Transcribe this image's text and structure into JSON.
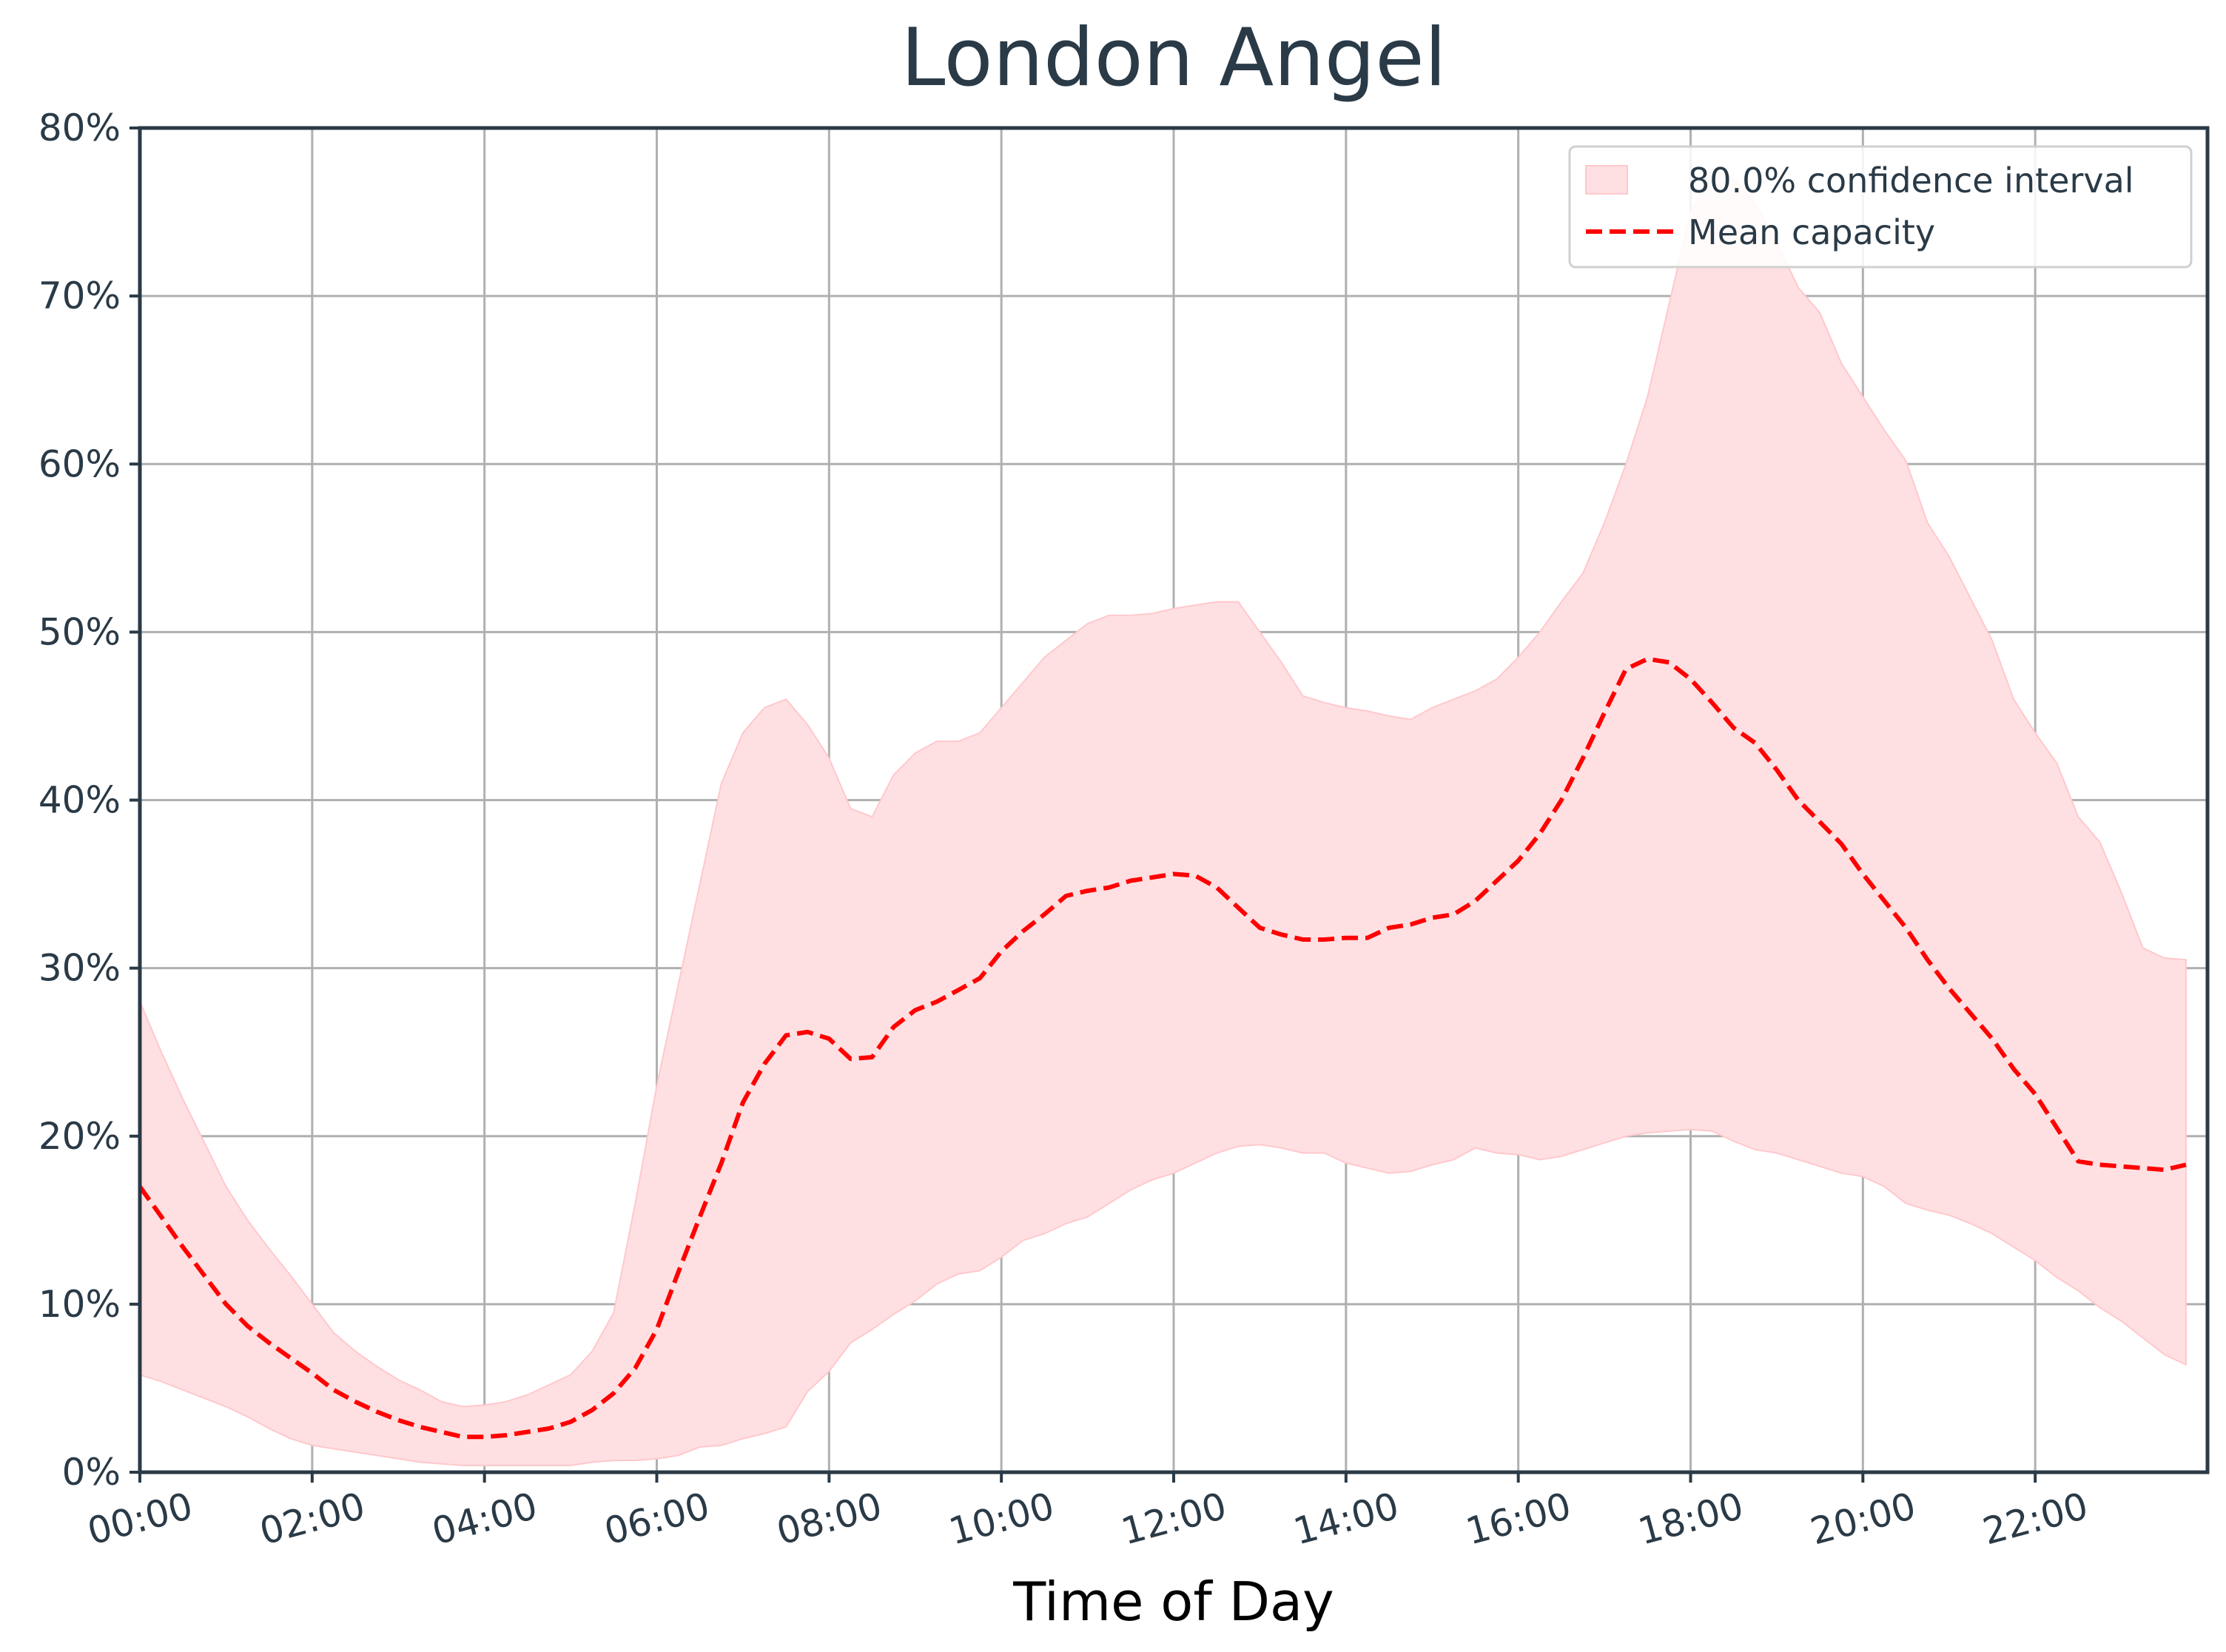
{
  "chart_data": {
    "type": "line",
    "title": "London Angel",
    "xlabel": "Time of Day",
    "ylabel": "",
    "ylim": [
      0,
      0.8
    ],
    "xlim": [
      "00:00",
      "23:45"
    ],
    "x_tick_labels": [
      "00:00",
      "02:00",
      "04:00",
      "06:00",
      "08:00",
      "10:00",
      "12:00",
      "14:00",
      "16:00",
      "18:00",
      "20:00",
      "22:00"
    ],
    "y_tick_labels": [
      "0%",
      "10%",
      "20%",
      "30%",
      "40%",
      "50%",
      "60%",
      "70%",
      "80%"
    ],
    "grid": true,
    "legend_position": "top-right",
    "colors": {
      "mean": "#ff0000",
      "band": "#ffe0e2",
      "band_edge": "#ffc8cc",
      "grid": "#b0b0b0",
      "axes": "#2a3a47",
      "text": "#2a3a47"
    },
    "legend": [
      {
        "label": "80.0% confidence interval",
        "kind": "band"
      },
      {
        "label": "Mean capacity",
        "kind": "dashed-line"
      }
    ],
    "x": [
      "00:00",
      "00:15",
      "00:30",
      "00:45",
      "01:00",
      "01:15",
      "01:30",
      "01:45",
      "02:00",
      "02:15",
      "02:30",
      "02:45",
      "03:00",
      "03:15",
      "03:30",
      "03:45",
      "04:00",
      "04:15",
      "04:30",
      "04:45",
      "05:00",
      "05:15",
      "05:30",
      "05:45",
      "06:00",
      "06:15",
      "06:30",
      "06:45",
      "07:00",
      "07:15",
      "07:30",
      "07:45",
      "08:00",
      "08:15",
      "08:30",
      "08:45",
      "09:00",
      "09:15",
      "09:30",
      "09:45",
      "10:00",
      "10:15",
      "10:30",
      "10:45",
      "11:00",
      "11:15",
      "11:30",
      "11:45",
      "12:00",
      "12:15",
      "12:30",
      "12:45",
      "13:00",
      "13:15",
      "13:30",
      "13:45",
      "14:00",
      "14:15",
      "14:30",
      "14:45",
      "15:00",
      "15:15",
      "15:30",
      "15:45",
      "16:00",
      "16:15",
      "16:30",
      "16:45",
      "17:00",
      "17:15",
      "17:30",
      "17:45",
      "18:00",
      "18:15",
      "18:30",
      "18:45",
      "19:00",
      "19:15",
      "19:30",
      "19:45",
      "20:00",
      "20:15",
      "20:30",
      "20:45",
      "21:00",
      "21:15",
      "21:30",
      "21:45",
      "22:00",
      "22:15",
      "22:30",
      "22:45",
      "23:00",
      "23:15",
      "23:30",
      "23:45"
    ],
    "series": [
      {
        "name": "Mean capacity",
        "values": [
          0.17,
          0.152,
          0.134,
          0.117,
          0.1,
          0.087,
          0.077,
          0.068,
          0.059,
          0.049,
          0.042,
          0.036,
          0.031,
          0.027,
          0.024,
          0.021,
          0.021,
          0.022,
          0.024,
          0.026,
          0.03,
          0.037,
          0.047,
          0.062,
          0.085,
          0.119,
          0.152,
          0.184,
          0.22,
          0.243,
          0.26,
          0.262,
          0.258,
          0.246,
          0.247,
          0.265,
          0.275,
          0.28,
          0.287,
          0.294,
          0.31,
          0.322,
          0.332,
          0.343,
          0.346,
          0.348,
          0.352,
          0.354,
          0.356,
          0.355,
          0.348,
          0.336,
          0.324,
          0.32,
          0.317,
          0.317,
          0.318,
          0.318,
          0.324,
          0.326,
          0.33,
          0.332,
          0.34,
          0.352,
          0.364,
          0.38,
          0.4,
          0.425,
          0.452,
          0.478,
          0.484,
          0.482,
          0.472,
          0.458,
          0.443,
          0.434,
          0.418,
          0.4,
          0.387,
          0.374,
          0.356,
          0.34,
          0.324,
          0.305,
          0.288,
          0.273,
          0.258,
          0.24,
          0.225,
          0.205,
          0.185,
          0.183,
          0.182,
          0.181,
          0.18,
          0.183
        ]
      },
      {
        "name": "80.0% confidence interval (upper)",
        "values": [
          0.28,
          0.25,
          0.222,
          0.196,
          0.17,
          0.15,
          0.133,
          0.117,
          0.1,
          0.083,
          0.072,
          0.063,
          0.055,
          0.049,
          0.042,
          0.039,
          0.04,
          0.042,
          0.046,
          0.052,
          0.058,
          0.072,
          0.095,
          0.16,
          0.23,
          0.29,
          0.35,
          0.41,
          0.44,
          0.455,
          0.46,
          0.445,
          0.425,
          0.395,
          0.39,
          0.415,
          0.428,
          0.435,
          0.435,
          0.44,
          0.455,
          0.47,
          0.485,
          0.495,
          0.505,
          0.51,
          0.51,
          0.511,
          0.514,
          0.516,
          0.518,
          0.518,
          0.5,
          0.482,
          0.462,
          0.458,
          0.455,
          0.453,
          0.45,
          0.448,
          0.455,
          0.46,
          0.465,
          0.472,
          0.485,
          0.5,
          0.518,
          0.535,
          0.565,
          0.6,
          0.64,
          0.695,
          0.75,
          0.775,
          0.77,
          0.755,
          0.732,
          0.705,
          0.69,
          0.66,
          0.64,
          0.62,
          0.602,
          0.565,
          0.545,
          0.52,
          0.495,
          0.46,
          0.44,
          0.422,
          0.39,
          0.375,
          0.345,
          0.312,
          0.306,
          0.305
        ]
      },
      {
        "name": "80.0% confidence interval (lower)",
        "values": [
          0.058,
          0.054,
          0.049,
          0.044,
          0.039,
          0.033,
          0.026,
          0.02,
          0.016,
          0.014,
          0.012,
          0.01,
          0.008,
          0.006,
          0.005,
          0.004,
          0.004,
          0.004,
          0.004,
          0.004,
          0.004,
          0.006,
          0.007,
          0.007,
          0.008,
          0.01,
          0.015,
          0.016,
          0.02,
          0.023,
          0.027,
          0.048,
          0.06,
          0.077,
          0.085,
          0.094,
          0.102,
          0.112,
          0.118,
          0.12,
          0.128,
          0.138,
          0.142,
          0.148,
          0.152,
          0.16,
          0.168,
          0.174,
          0.178,
          0.184,
          0.19,
          0.194,
          0.195,
          0.193,
          0.19,
          0.19,
          0.184,
          0.181,
          0.178,
          0.179,
          0.183,
          0.186,
          0.193,
          0.19,
          0.189,
          0.186,
          0.188,
          0.192,
          0.196,
          0.2,
          0.202,
          0.203,
          0.204,
          0.203,
          0.197,
          0.192,
          0.19,
          0.186,
          0.182,
          0.178,
          0.176,
          0.17,
          0.16,
          0.156,
          0.153,
          0.148,
          0.142,
          0.134,
          0.126,
          0.116,
          0.108,
          0.098,
          0.09,
          0.08,
          0.07,
          0.064
        ]
      }
    ]
  }
}
